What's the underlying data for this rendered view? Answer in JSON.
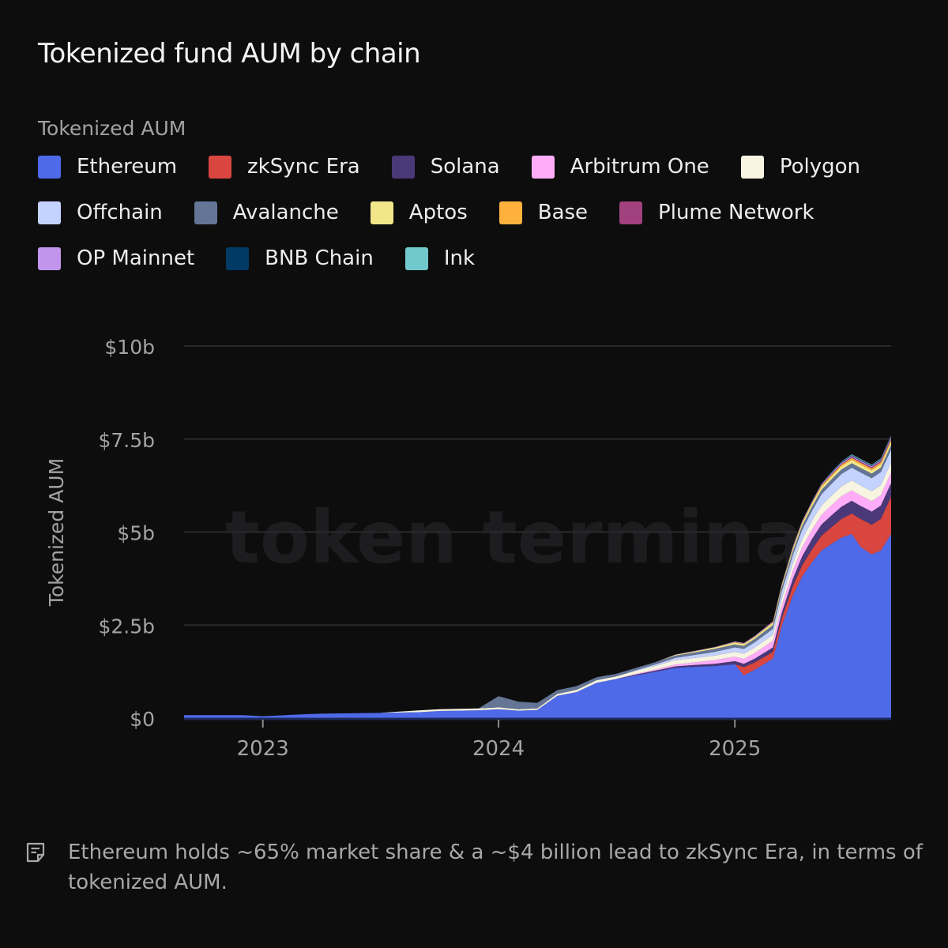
{
  "chart_data": {
    "type": "area",
    "stacked": true,
    "title": "Tokenized fund AUM by chain",
    "legend_title": "Tokenized AUM",
    "legend_position": "top-left",
    "ylabel": "Tokenized AUM",
    "xlabel": "",
    "ylim": [
      0,
      10
    ],
    "y_unit": "billions USD",
    "y_ticks": [
      {
        "value": 0,
        "label": "$0"
      },
      {
        "value": 2.5,
        "label": "$2.5b"
      },
      {
        "value": 5,
        "label": "$5b"
      },
      {
        "value": 7.5,
        "label": "$7.5b"
      },
      {
        "value": 10,
        "label": "$10b"
      }
    ],
    "xlim": [
      "2022-09-01",
      "2025-08-31"
    ],
    "x_ticks": [
      {
        "value": "2023-01-01",
        "label": "2023"
      },
      {
        "value": "2024-01-01",
        "label": "2024"
      },
      {
        "value": "2025-01-01",
        "label": "2025"
      }
    ],
    "grid": true,
    "watermark": "token terminal_",
    "x": [
      "2022-09-01",
      "2022-12-01",
      "2023-01-01",
      "2023-03-01",
      "2023-04-01",
      "2023-07-01",
      "2023-09-01",
      "2023-10-01",
      "2023-12-01",
      "2024-01-01",
      "2024-02-01",
      "2024-03-01",
      "2024-04-01",
      "2024-05-01",
      "2024-06-01",
      "2024-07-01",
      "2024-08-01",
      "2024-09-01",
      "2024-10-01",
      "2024-11-01",
      "2024-12-01",
      "2025-01-01",
      "2025-01-15",
      "2025-02-01",
      "2025-03-01",
      "2025-03-15",
      "2025-04-01",
      "2025-04-15",
      "2025-05-01",
      "2025-05-15",
      "2025-06-01",
      "2025-06-15",
      "2025-07-01",
      "2025-07-15",
      "2025-08-01",
      "2025-08-15",
      "2025-08-31"
    ],
    "series": [
      {
        "name": "Ethereum",
        "color": "#4f6ae8",
        "values": [
          0.08,
          0.08,
          0.05,
          0.1,
          0.12,
          0.14,
          0.16,
          0.19,
          0.21,
          0.24,
          0.2,
          0.22,
          0.6,
          0.7,
          0.95,
          1.05,
          1.15,
          1.25,
          1.35,
          1.38,
          1.4,
          1.45,
          1.15,
          1.3,
          1.6,
          2.5,
          3.3,
          3.8,
          4.2,
          4.5,
          4.7,
          4.85,
          4.95,
          4.6,
          4.4,
          4.5,
          4.95
        ]
      },
      {
        "name": "zkSync Era",
        "color": "#d9463f",
        "values": [
          0,
          0,
          0,
          0,
          0,
          0,
          0,
          0,
          0,
          0,
          0,
          0,
          0,
          0,
          0,
          0,
          0,
          0,
          0,
          0,
          0,
          0,
          0.22,
          0.2,
          0.18,
          0.2,
          0.25,
          0.3,
          0.35,
          0.4,
          0.45,
          0.5,
          0.55,
          0.75,
          0.8,
          0.85,
          1.0
        ]
      },
      {
        "name": "Solana",
        "color": "#4a3878",
        "values": [
          0,
          0,
          0,
          0,
          0,
          0,
          0,
          0,
          0,
          0,
          0,
          0,
          0,
          0,
          0,
          0,
          0.02,
          0.03,
          0.04,
          0.05,
          0.06,
          0.08,
          0.09,
          0.1,
          0.12,
          0.15,
          0.2,
          0.24,
          0.28,
          0.3,
          0.32,
          0.33,
          0.34,
          0.35,
          0.35,
          0.36,
          0.37
        ]
      },
      {
        "name": "Arbitrum One",
        "color": "#ffadf9",
        "values": [
          0,
          0,
          0,
          0,
          0,
          0,
          0,
          0,
          0,
          0,
          0,
          0,
          0,
          0,
          0,
          0,
          0.02,
          0.03,
          0.05,
          0.07,
          0.1,
          0.12,
          0.13,
          0.15,
          0.18,
          0.2,
          0.22,
          0.24,
          0.25,
          0.26,
          0.27,
          0.28,
          0.28,
          0.28,
          0.28,
          0.28,
          0.28
        ]
      },
      {
        "name": "Polygon",
        "color": "#f7f4e2",
        "values": [
          0,
          0,
          0,
          0,
          0,
          0,
          0.05,
          0.05,
          0.05,
          0.05,
          0.04,
          0.04,
          0.05,
          0.06,
          0.07,
          0.07,
          0.08,
          0.1,
          0.12,
          0.12,
          0.12,
          0.13,
          0.14,
          0.15,
          0.16,
          0.18,
          0.2,
          0.22,
          0.24,
          0.25,
          0.26,
          0.27,
          0.27,
          0.27,
          0.27,
          0.27,
          0.27
        ]
      },
      {
        "name": "Offchain",
        "color": "#c4d2ff",
        "values": [
          0,
          0,
          0,
          0,
          0,
          0,
          0,
          0,
          0,
          0,
          0,
          0,
          0,
          0,
          0,
          0,
          0.02,
          0.04,
          0.06,
          0.08,
          0.1,
          0.12,
          0.13,
          0.14,
          0.16,
          0.2,
          0.22,
          0.25,
          0.27,
          0.3,
          0.32,
          0.33,
          0.34,
          0.35,
          0.35,
          0.35,
          0.35
        ]
      },
      {
        "name": "Avalanche",
        "color": "#647596",
        "values": [
          0,
          0,
          0,
          0,
          0,
          0,
          0,
          0,
          0,
          0.3,
          0.2,
          0.15,
          0.1,
          0.1,
          0.08,
          0.07,
          0.06,
          0.06,
          0.06,
          0.07,
          0.08,
          0.08,
          0.08,
          0.09,
          0.1,
          0.1,
          0.1,
          0.11,
          0.11,
          0.12,
          0.12,
          0.12,
          0.12,
          0.12,
          0.12,
          0.12,
          0.12
        ]
      },
      {
        "name": "Aptos",
        "color": "#f2e68a",
        "values": [
          0,
          0,
          0,
          0,
          0,
          0,
          0,
          0,
          0,
          0,
          0,
          0,
          0,
          0,
          0,
          0,
          0,
          0,
          0.02,
          0.03,
          0.04,
          0.05,
          0.05,
          0.05,
          0.06,
          0.06,
          0.07,
          0.07,
          0.08,
          0.08,
          0.08,
          0.09,
          0.09,
          0.09,
          0.09,
          0.09,
          0.09
        ]
      },
      {
        "name": "Base",
        "color": "#ffb13d",
        "values": [
          0,
          0,
          0,
          0,
          0,
          0,
          0,
          0,
          0,
          0,
          0,
          0,
          0,
          0,
          0,
          0,
          0,
          0,
          0,
          0,
          0,
          0.01,
          0.01,
          0.01,
          0.02,
          0.02,
          0.03,
          0.03,
          0.03,
          0.04,
          0.04,
          0.04,
          0.05,
          0.05,
          0.05,
          0.05,
          0.05
        ]
      },
      {
        "name": "Plume Network",
        "color": "#a1417d",
        "values": [
          0,
          0,
          0,
          0,
          0,
          0,
          0,
          0,
          0,
          0,
          0,
          0,
          0,
          0,
          0,
          0,
          0,
          0,
          0,
          0,
          0,
          0,
          0,
          0,
          0,
          0,
          0,
          0,
          0,
          0.01,
          0.02,
          0.02,
          0.03,
          0.03,
          0.03,
          0.04,
          0.04
        ]
      },
      {
        "name": "OP Mainnet",
        "color": "#c195ec",
        "values": [
          0,
          0,
          0,
          0,
          0,
          0,
          0,
          0,
          0,
          0,
          0,
          0,
          0,
          0,
          0,
          0,
          0,
          0,
          0.01,
          0.01,
          0.01,
          0.02,
          0.02,
          0.02,
          0.02,
          0.02,
          0.03,
          0.03,
          0.03,
          0.03,
          0.03,
          0.03,
          0.03,
          0.03,
          0.03,
          0.03,
          0.03
        ]
      },
      {
        "name": "BNB Chain",
        "color": "#013b65",
        "values": [
          0,
          0,
          0,
          0,
          0,
          0,
          0,
          0,
          0,
          0,
          0,
          0,
          0,
          0,
          0,
          0,
          0,
          0,
          0,
          0,
          0,
          0,
          0,
          0,
          0,
          0,
          0.01,
          0.01,
          0.01,
          0.01,
          0.02,
          0.02,
          0.02,
          0.02,
          0.02,
          0.02,
          0.02
        ]
      },
      {
        "name": "Ink",
        "color": "#72c9cc",
        "values": [
          0,
          0,
          0,
          0,
          0,
          0,
          0,
          0,
          0,
          0,
          0,
          0,
          0,
          0,
          0,
          0,
          0,
          0,
          0,
          0,
          0,
          0,
          0,
          0,
          0,
          0,
          0,
          0,
          0,
          0,
          0.01,
          0.01,
          0.02,
          0.02,
          0.02,
          0.02,
          0.02
        ]
      }
    ]
  },
  "footnote": {
    "icon": "note-icon",
    "text": "Ethereum holds ~65% market share & a ~$4 billion lead to zkSync Era, in terms of tokenized AUM."
  }
}
